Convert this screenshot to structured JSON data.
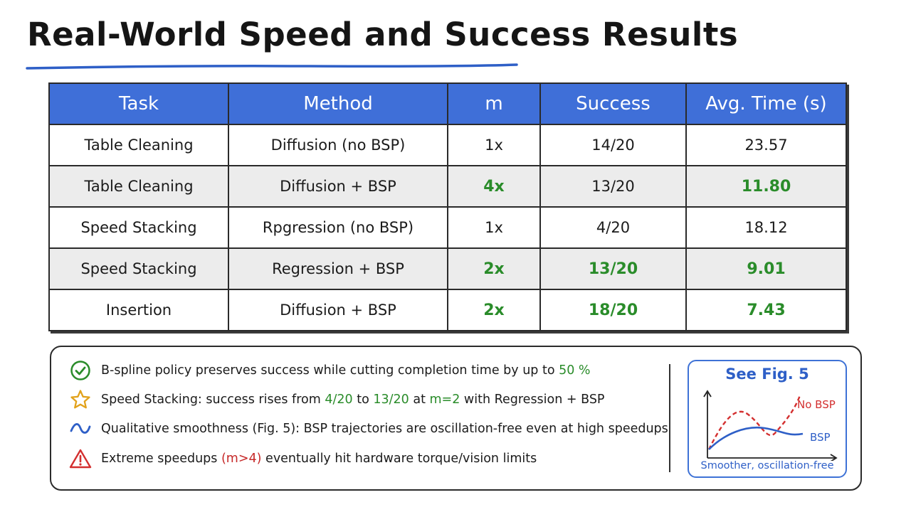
{
  "title": "Real-World Speed and Success Results",
  "table": {
    "headers": [
      "Task",
      "Method",
      "m",
      "Success",
      "Avg. Time (s)"
    ],
    "rows": [
      {
        "task": "Table Cleaning",
        "method": "Diffusion (no BSP)",
        "m": "1x",
        "success": "14/20",
        "time": "23.57"
      },
      {
        "task": "Table Cleaning",
        "method": "Diffusion + BSP",
        "m": "4x",
        "success": "13/20",
        "time": "11.80"
      },
      {
        "task": "Speed Stacking",
        "method": "Rpgression (no BSP)",
        "m": "1x",
        "success": "4/20",
        "time": "18.12"
      },
      {
        "task": "Speed Stacking",
        "method": "Regression + BSP",
        "m": "2x",
        "success": "13/20",
        "time": "9.01"
      },
      {
        "task": "Insertion",
        "method": "Diffusion + BSP",
        "m": "2x",
        "success": "18/20",
        "time": "7.43"
      }
    ],
    "highlight_color": "#2a8c2a",
    "header_color": "#3f6fd8"
  },
  "notes": [
    {
      "icon": "check-circle-icon",
      "parts": [
        "B-spline policy preserves success while cutting completion time by up to ",
        "50 %"
      ]
    },
    {
      "icon": "star-icon",
      "parts": [
        "Speed Stacking: success rises from ",
        "4/20",
        " to ",
        "13/20",
        " at ",
        "m=2",
        " with Regression + BSP"
      ]
    },
    {
      "icon": "wave-icon",
      "parts": [
        "Qualitative smoothness (Fig. 5): BSP trajectories are oscillation-free even at high speedups"
      ]
    },
    {
      "icon": "warning-icon",
      "parts": [
        "Extreme speedups ",
        "(m>4)",
        " eventually hit hardware torque/vision limits"
      ]
    }
  ],
  "figure": {
    "title": "See Fig. 5",
    "label_no_bsp": "No BSP",
    "label_bsp": "BSP",
    "footer": "Smoother, oscillation-free",
    "color_no_bsp": "#d32f2f",
    "color_bsp": "#2e5fc7"
  }
}
